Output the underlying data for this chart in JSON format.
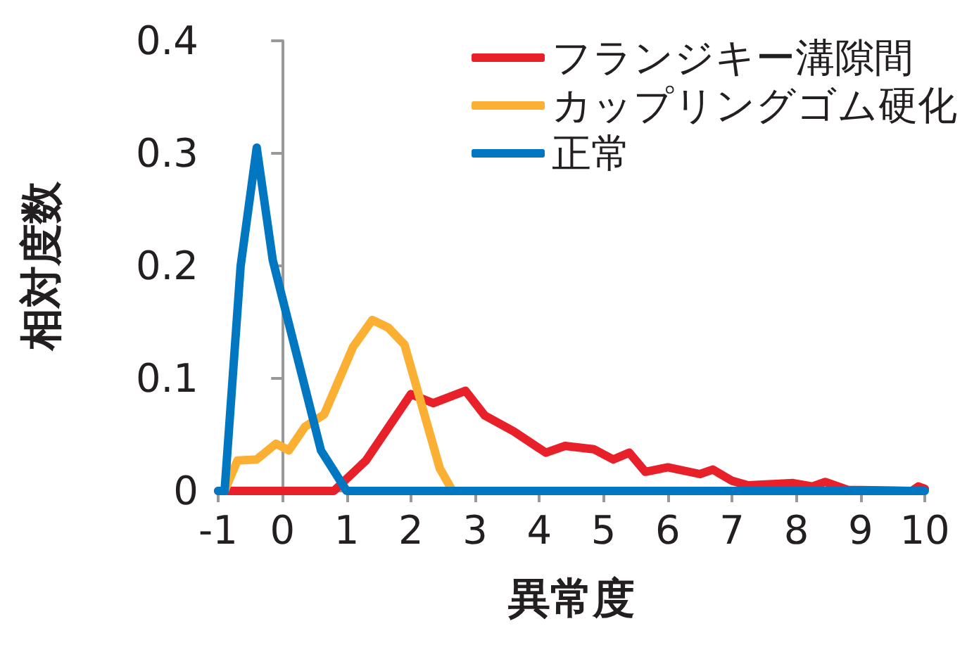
{
  "chart_data": {
    "type": "line",
    "xlabel": "異常度",
    "ylabel": "相対度数",
    "xlim": [
      -1,
      10
    ],
    "xticks": [
      -1,
      0,
      1,
      2,
      3,
      4,
      5,
      6,
      7,
      8,
      9,
      10
    ],
    "ylim": [
      0,
      0.4
    ],
    "yticks": [
      0,
      0.1,
      0.2,
      0.3,
      0.4
    ],
    "grid": false,
    "legend": "top right",
    "marker": "none",
    "line_style": "solid",
    "series": [
      {
        "name": "フランジキー溝隙間",
        "color": "#e8202a",
        "x": [
          -1,
          0.8,
          1.3,
          2.0,
          2.35,
          2.85,
          3.15,
          3.6,
          4.1,
          4.4,
          4.85,
          5.15,
          5.4,
          5.65,
          6.0,
          6.5,
          6.7,
          7.0,
          7.25,
          7.95,
          8.25,
          8.45,
          8.8,
          9.8,
          9.9,
          10
        ],
        "values": [
          0,
          0,
          0.027,
          0.086,
          0.078,
          0.089,
          0.067,
          0.053,
          0.034,
          0.04,
          0.037,
          0.028,
          0.034,
          0.017,
          0.021,
          0.015,
          0.019,
          0.009,
          0.005,
          0.007,
          0.004,
          0.008,
          0.001,
          0,
          0.004,
          0.002
        ]
      },
      {
        "name": "カップリングゴム硬化",
        "color": "#fbb034",
        "x": [
          -0.9,
          -0.7,
          -0.4,
          -0.1,
          0.1,
          0.35,
          0.65,
          1.1,
          1.4,
          1.65,
          1.9,
          2.45,
          2.65
        ],
        "values": [
          0,
          0.027,
          0.028,
          0.042,
          0.036,
          0.057,
          0.068,
          0.128,
          0.152,
          0.145,
          0.13,
          0.02,
          0
        ]
      },
      {
        "name": "正常",
        "color": "#0077c0",
        "x": [
          -1,
          -0.9,
          -0.65,
          -0.4,
          -0.15,
          0.6,
          1.0,
          10
        ],
        "values": [
          0,
          0,
          0.2,
          0.305,
          0.205,
          0.036,
          0,
          0
        ]
      }
    ]
  }
}
